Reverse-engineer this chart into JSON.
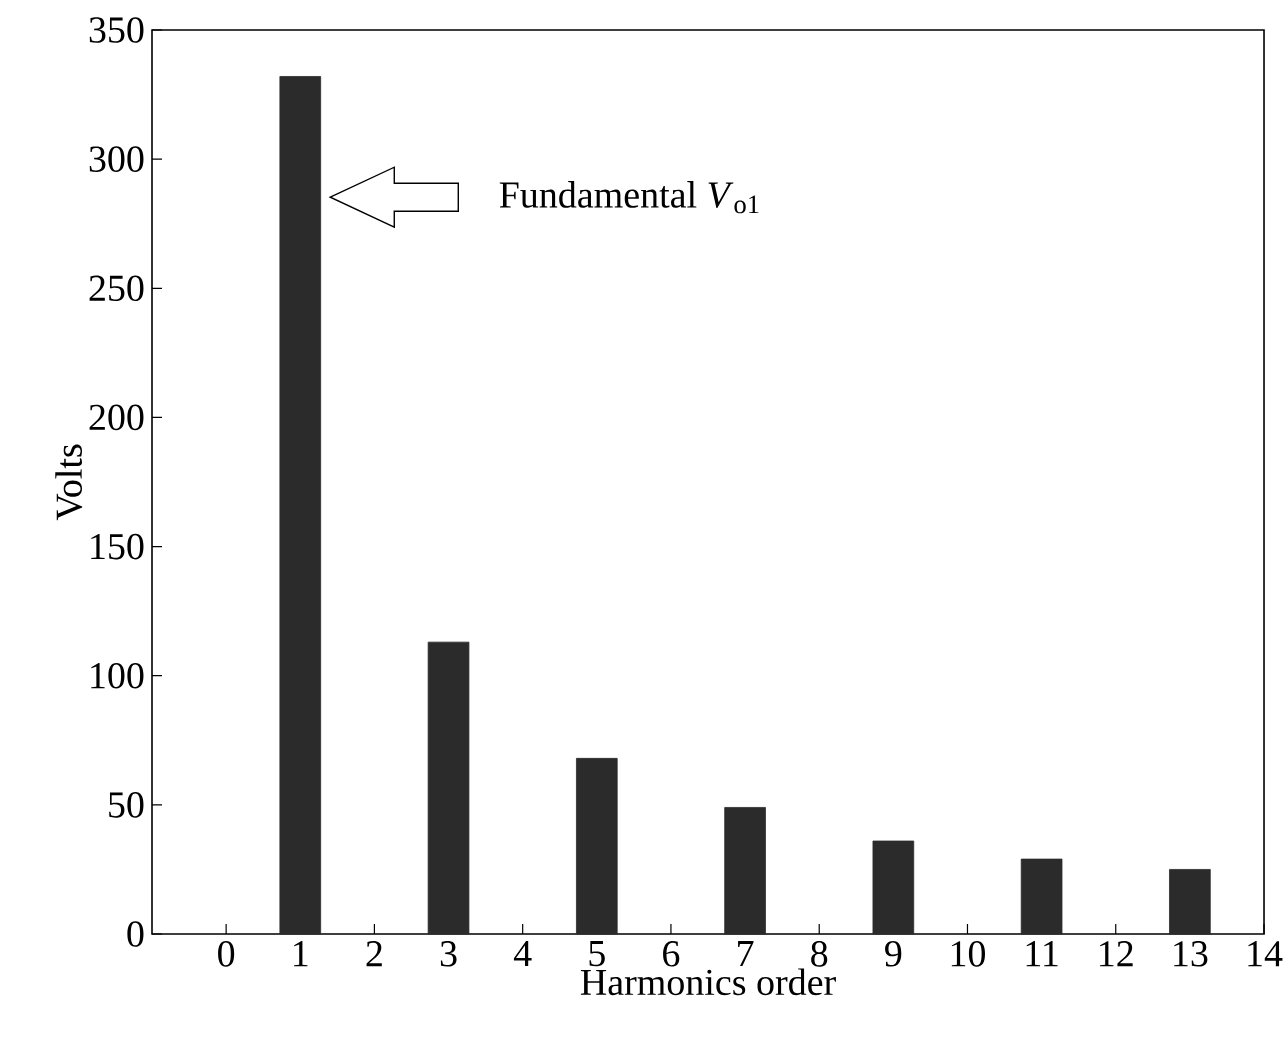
{
  "chart_data": {
    "type": "bar",
    "x": [
      1,
      3,
      5,
      7,
      9,
      11,
      13
    ],
    "values": [
      332,
      113,
      68,
      49,
      36,
      29,
      25
    ],
    "color": "#2b2b2b",
    "xlabel": "Harmonics order",
    "ylabel": "Volts",
    "xlim": [
      -1,
      14
    ],
    "xticks": [
      0,
      1,
      2,
      3,
      4,
      5,
      6,
      7,
      8,
      9,
      10,
      11,
      12,
      13,
      14
    ],
    "ylim": [
      0,
      350
    ],
    "yticks": [
      0,
      50,
      100,
      150,
      200,
      250,
      300,
      350
    ],
    "annotations": [
      "Fundamental *V*$_{o1}$"
    ]
  }
}
